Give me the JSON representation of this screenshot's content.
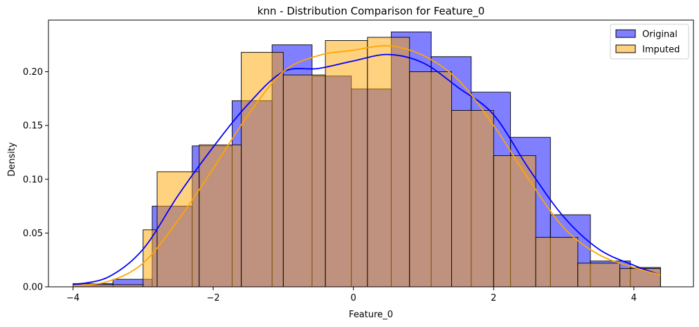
{
  "chart_data": {
    "type": "histogram",
    "title": "knn - Distribution Comparison for Feature_0",
    "xlabel": "Feature_0",
    "ylabel": "Density",
    "xlim": [
      -4.35,
      4.85
    ],
    "ylim": [
      0,
      0.248
    ],
    "xticks": [
      -4,
      -2,
      0,
      2,
      4
    ],
    "xtick_labels": [
      "−4",
      "−2",
      "0",
      "2",
      "4"
    ],
    "yticks": [
      0.0,
      0.05,
      0.1,
      0.15,
      0.2
    ],
    "ytick_labels": [
      "0.00",
      "0.05",
      "0.10",
      "0.15",
      "0.20"
    ],
    "legend_position": "top-right",
    "grid": false,
    "series": [
      {
        "name": "Original",
        "color": "#0000ff",
        "fill_opacity": 0.5,
        "bins": [
          -4.0,
          -3.43,
          -2.87,
          -2.3,
          -1.73,
          -1.16,
          -0.59,
          -0.03,
          0.54,
          1.11,
          1.68,
          2.24,
          2.81,
          3.38,
          3.95,
          4.38
        ],
        "values": [
          0.003,
          0.007,
          0.075,
          0.131,
          0.173,
          0.225,
          0.196,
          0.184,
          0.237,
          0.214,
          0.181,
          0.139,
          0.067,
          0.024,
          0.018
        ],
        "kde": {
          "x": [
            -4.0,
            -3.5,
            -3.0,
            -2.5,
            -2.0,
            -1.5,
            -1.0,
            -0.5,
            0.0,
            0.5,
            1.0,
            1.5,
            2.0,
            2.5,
            3.0,
            3.5,
            4.0,
            4.38
          ],
          "y": [
            0.002,
            0.009,
            0.035,
            0.085,
            0.13,
            0.17,
            0.2,
            0.203,
            0.21,
            0.216,
            0.208,
            0.185,
            0.16,
            0.11,
            0.065,
            0.035,
            0.02,
            0.011
          ]
        }
      },
      {
        "name": "Imputed",
        "color": "#ffa500",
        "fill_opacity": 0.5,
        "bins": [
          -4.0,
          -3.0,
          -2.8,
          -2.2,
          -1.6,
          -1.0,
          -0.4,
          0.2,
          0.8,
          1.4,
          2.0,
          2.6,
          3.2,
          3.8,
          4.38
        ],
        "values": [
          0.002,
          0.053,
          0.107,
          0.132,
          0.218,
          0.197,
          0.229,
          0.232,
          0.2,
          0.164,
          0.122,
          0.046,
          0.022,
          0.017
        ],
        "kde": {
          "x": [
            -4.0,
            -3.5,
            -3.0,
            -2.5,
            -2.0,
            -1.5,
            -1.0,
            -0.5,
            0.0,
            0.5,
            1.0,
            1.5,
            2.0,
            2.5,
            3.0,
            3.5,
            4.0,
            4.38
          ],
          "y": [
            0.001,
            0.005,
            0.022,
            0.062,
            0.11,
            0.16,
            0.2,
            0.215,
            0.22,
            0.224,
            0.215,
            0.192,
            0.15,
            0.1,
            0.055,
            0.03,
            0.018,
            0.011
          ]
        }
      }
    ]
  }
}
